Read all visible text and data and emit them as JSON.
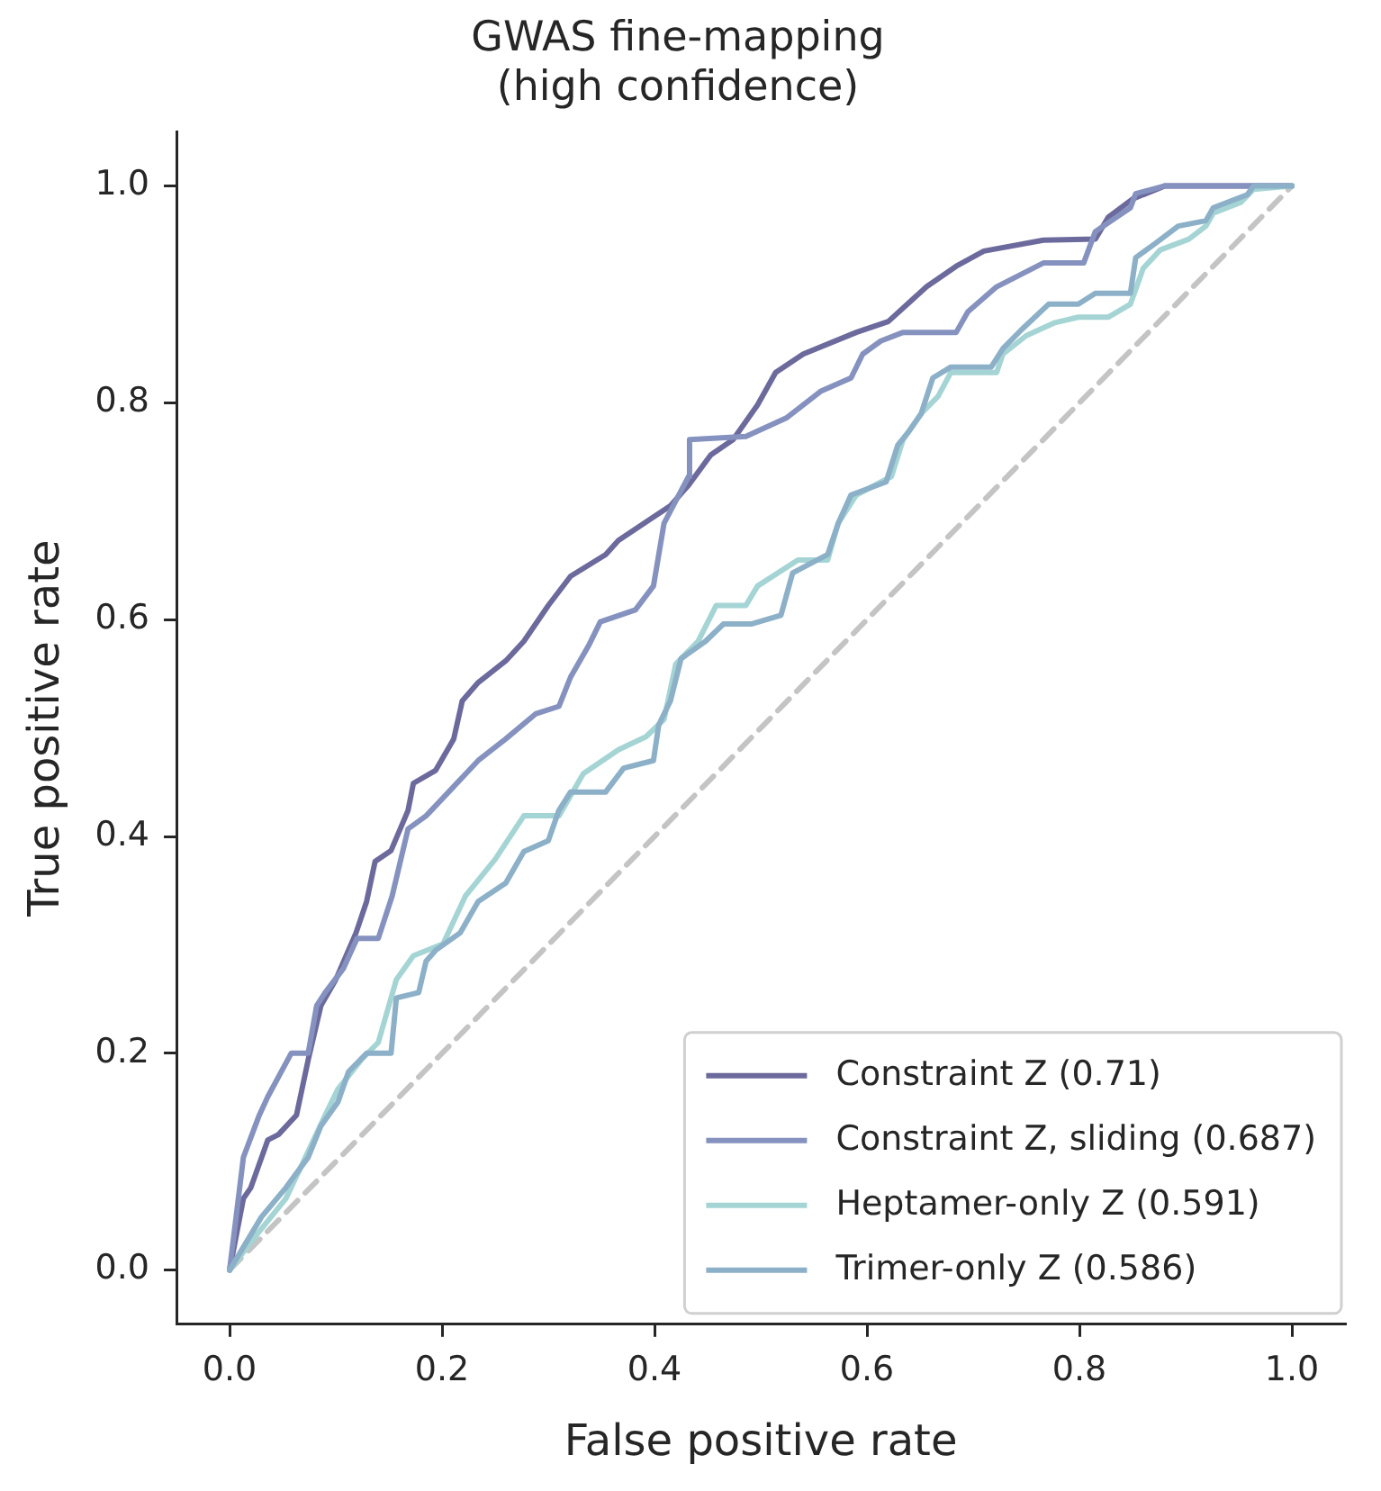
{
  "chart_data": {
    "type": "line",
    "title": "GWAS fine-mapping\n(high confidence)",
    "xlabel": "False positive rate",
    "ylabel": "True positive rate",
    "xlim": [
      -0.05,
      1.05
    ],
    "ylim": [
      -0.05,
      1.05
    ],
    "xticks": [
      {
        "value": 0,
        "label": "0.0"
      },
      {
        "value": 0.2,
        "label": "0.2"
      },
      {
        "value": 0.4,
        "label": "0.4"
      },
      {
        "value": 0.6,
        "label": "0.6"
      },
      {
        "value": 0.8,
        "label": "0.8"
      },
      {
        "value": 1,
        "label": "1.0"
      }
    ],
    "yticks": [
      {
        "value": 0,
        "label": "0.0"
      },
      {
        "value": 0.2,
        "label": "0.2"
      },
      {
        "value": 0.4,
        "label": "0.4"
      },
      {
        "value": 0.6,
        "label": "0.6"
      },
      {
        "value": 0.8,
        "label": "0.8"
      },
      {
        "value": 1,
        "label": "1.0"
      }
    ],
    "grid": false,
    "legend": "bottom right",
    "marker": "none",
    "series": [
      {
        "name": "Constraint Z (0.71)",
        "color": "#6c6a9c",
        "x": [
          0,
          0.013,
          0.02,
          0.036,
          0.046,
          0.063,
          0.074,
          0.086,
          0.1,
          0.119,
          0.129,
          0.137,
          0.152,
          0.168,
          0.173,
          0.194,
          0.211,
          0.219,
          0.234,
          0.26,
          0.277,
          0.3,
          0.321,
          0.354,
          0.366,
          0.392,
          0.415,
          0.432,
          0.453,
          0.474,
          0.497,
          0.514,
          0.54,
          0.59,
          0.62,
          0.656,
          0.684,
          0.71,
          0.766,
          0.815,
          0.827,
          0.85,
          0.88,
          1
        ],
        "values": [
          0,
          0.066,
          0.076,
          0.12,
          0.125,
          0.143,
          0.194,
          0.244,
          0.268,
          0.311,
          0.34,
          0.377,
          0.387,
          0.424,
          0.449,
          0.461,
          0.49,
          0.525,
          0.542,
          0.562,
          0.58,
          0.613,
          0.64,
          0.66,
          0.673,
          0.69,
          0.705,
          0.724,
          0.752,
          0.766,
          0.798,
          0.828,
          0.845,
          0.865,
          0.875,
          0.907,
          0.926,
          0.94,
          0.95,
          0.951,
          0.971,
          0.988,
          1,
          1
        ]
      },
      {
        "name": "Constraint Z, sliding (0.687)",
        "color": "#8592bf",
        "x": [
          0,
          0.013,
          0.028,
          0.036,
          0.058,
          0.074,
          0.082,
          0.09,
          0.107,
          0.12,
          0.14,
          0.153,
          0.168,
          0.185,
          0.211,
          0.234,
          0.26,
          0.288,
          0.31,
          0.321,
          0.338,
          0.349,
          0.382,
          0.399,
          0.409,
          0.432,
          0.433,
          0.486,
          0.524,
          0.557,
          0.585,
          0.596,
          0.613,
          0.634,
          0.684,
          0.695,
          0.722,
          0.766,
          0.804,
          0.815,
          0.848,
          0.853,
          0.88,
          1
        ],
        "values": [
          0,
          0.104,
          0.143,
          0.16,
          0.2,
          0.2,
          0.244,
          0.256,
          0.278,
          0.306,
          0.306,
          0.345,
          0.407,
          0.419,
          0.446,
          0.47,
          0.49,
          0.513,
          0.52,
          0.547,
          0.576,
          0.598,
          0.609,
          0.631,
          0.689,
          0.732,
          0.766,
          0.769,
          0.786,
          0.811,
          0.823,
          0.845,
          0.857,
          0.865,
          0.865,
          0.884,
          0.907,
          0.929,
          0.929,
          0.958,
          0.98,
          0.993,
          1,
          1
        ]
      },
      {
        "name": "Heptamer-only Z (0.591)",
        "color": "#a5d4d4",
        "x": [
          0,
          0.025,
          0.053,
          0.069,
          0.09,
          0.102,
          0.124,
          0.14,
          0.157,
          0.173,
          0.201,
          0.222,
          0.25,
          0.277,
          0.31,
          0.333,
          0.366,
          0.392,
          0.409,
          0.42,
          0.441,
          0.458,
          0.486,
          0.497,
          0.535,
          0.563,
          0.573,
          0.59,
          0.623,
          0.634,
          0.651,
          0.667,
          0.679,
          0.722,
          0.728,
          0.75,
          0.777,
          0.799,
          0.827,
          0.848,
          0.86,
          0.876,
          0.903,
          0.919,
          0.926,
          0.952,
          0.964,
          1
        ],
        "values": [
          0,
          0.032,
          0.066,
          0.099,
          0.143,
          0.167,
          0.194,
          0.21,
          0.268,
          0.29,
          0.301,
          0.345,
          0.379,
          0.419,
          0.419,
          0.458,
          0.48,
          0.492,
          0.508,
          0.559,
          0.58,
          0.613,
          0.613,
          0.631,
          0.655,
          0.655,
          0.689,
          0.715,
          0.732,
          0.766,
          0.79,
          0.806,
          0.828,
          0.828,
          0.845,
          0.862,
          0.874,
          0.879,
          0.879,
          0.891,
          0.924,
          0.941,
          0.951,
          0.963,
          0.975,
          0.985,
          0.997,
          1
        ]
      },
      {
        "name": "Trimer-only Z (0.586)",
        "color": "#8cb0c8",
        "x": [
          0,
          0.03,
          0.053,
          0.074,
          0.086,
          0.102,
          0.112,
          0.129,
          0.152,
          0.157,
          0.178,
          0.185,
          0.194,
          0.217,
          0.234,
          0.26,
          0.277,
          0.3,
          0.31,
          0.321,
          0.354,
          0.371,
          0.399,
          0.404,
          0.415,
          0.425,
          0.448,
          0.465,
          0.491,
          0.519,
          0.53,
          0.563,
          0.573,
          0.585,
          0.618,
          0.629,
          0.639,
          0.651,
          0.662,
          0.679,
          0.717,
          0.728,
          0.745,
          0.771,
          0.799,
          0.815,
          0.848,
          0.853,
          0.87,
          0.893,
          0.919,
          0.926,
          0.958,
          0.964,
          1
        ],
        "values": [
          0,
          0.049,
          0.076,
          0.104,
          0.133,
          0.155,
          0.183,
          0.2,
          0.2,
          0.251,
          0.256,
          0.285,
          0.295,
          0.311,
          0.34,
          0.357,
          0.386,
          0.396,
          0.424,
          0.441,
          0.441,
          0.463,
          0.47,
          0.503,
          0.525,
          0.564,
          0.58,
          0.596,
          0.596,
          0.604,
          0.643,
          0.66,
          0.689,
          0.715,
          0.727,
          0.761,
          0.773,
          0.79,
          0.823,
          0.833,
          0.833,
          0.85,
          0.867,
          0.891,
          0.891,
          0.901,
          0.901,
          0.934,
          0.946,
          0.963,
          0.968,
          0.98,
          0.992,
          1,
          1
        ]
      },
      {
        "type": "line",
        "color": "#c4c4c4",
        "line_style": "dashed",
        "x": [
          0,
          1
        ],
        "values": [
          0,
          1
        ]
      }
    ]
  }
}
